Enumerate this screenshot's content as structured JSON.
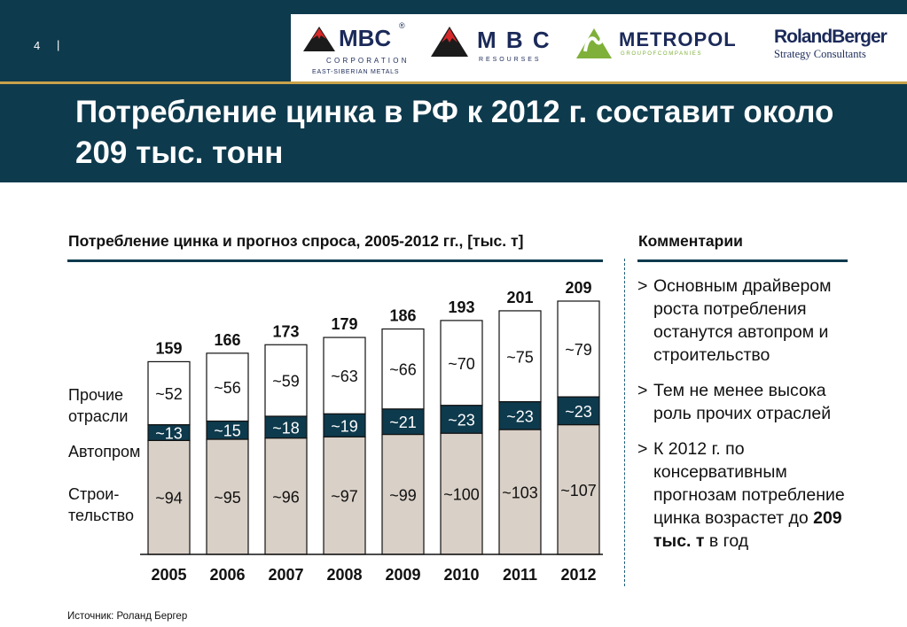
{
  "header": {
    "page_number": "4",
    "separator": "|",
    "title_lines": [
      "Потребление цинка в РФ к 2012 г. составит около",
      "209 тыс. тонн"
    ],
    "logos": [
      {
        "name": "MBC",
        "reg": "®",
        "sub1": "C O R P O R A T I O N",
        "sub2": "EAST-SIBERIAN METALS",
        "color": "#1b2a59",
        "icon": "mountain-logo-icon"
      },
      {
        "name": "M B C",
        "sub1": "R E S O U R S E S",
        "color": "#1b2a59",
        "icon": "mountain-logo-icon"
      },
      {
        "name": "METROPOL",
        "sub1": "G R O U P   O F   C O M P A N I E S",
        "color": "#1b2a59",
        "icon": "metropol-logo-icon"
      },
      {
        "name": "RolandBerger",
        "sub1": "Strategy Consultants",
        "color": "#1b2a59"
      }
    ]
  },
  "chart_title": "Потребление цинка и прогноз спроса, 2005-2012 гг., [тыс. т]",
  "comments": {
    "title": "Комментарии",
    "items": [
      {
        "marker": ">",
        "text": "Основным драйвером роста потребления останутся автопром и строительство"
      },
      {
        "marker": ">",
        "text": "Тем не менее высока роль прочих отраслей"
      },
      {
        "marker": ">",
        "text_before": "К 2012 г. по консервативным прогнозам потребление цинка возрастет до ",
        "bold": "209 тыс. т",
        "text_after": " в год"
      }
    ]
  },
  "source": "Источник: Роланд Бергер",
  "colors": {
    "header_bg": "#0e3a4d",
    "accent_gold": "#c9a24a",
    "construction": "#d9d0c7",
    "auto": "#0e3a4d",
    "other": "#ffffff"
  },
  "chart_data": {
    "type": "bar",
    "stacked": true,
    "title": "Потребление цинка и прогноз спроса, 2005-2012 гг., [тыс. т]",
    "categories": [
      "2005",
      "2006",
      "2007",
      "2008",
      "2009",
      "2010",
      "2011",
      "2012"
    ],
    "series": [
      {
        "name": "Строи-тельство",
        "legend_lines": [
          "Строи-",
          "тельство"
        ],
        "values": [
          94,
          95,
          96,
          97,
          99,
          100,
          103,
          107
        ],
        "labels": [
          "~94",
          "~95",
          "~96",
          "~97",
          "~99",
          "~100",
          "~103",
          "~107"
        ],
        "color": "#d9d0c7"
      },
      {
        "name": "Автопром",
        "legend_lines": [
          "Автопром"
        ],
        "values": [
          13,
          15,
          18,
          19,
          21,
          23,
          23,
          23
        ],
        "labels": [
          "~13",
          "~15",
          "~18",
          "~19",
          "~21",
          "~23",
          "~23",
          "~23"
        ],
        "color": "#0e3a4d"
      },
      {
        "name": "Прочие отрасли",
        "legend_lines": [
          "Прочие",
          "отрасли"
        ],
        "values": [
          52,
          56,
          59,
          63,
          66,
          70,
          75,
          79
        ],
        "labels": [
          "~52",
          "~56",
          "~59",
          "~63",
          "~66",
          "~70",
          "~75",
          "~79"
        ],
        "color": "#ffffff"
      }
    ],
    "totals": [
      159,
      166,
      173,
      179,
      186,
      193,
      201,
      209
    ],
    "ylim": [
      0,
      209
    ]
  }
}
